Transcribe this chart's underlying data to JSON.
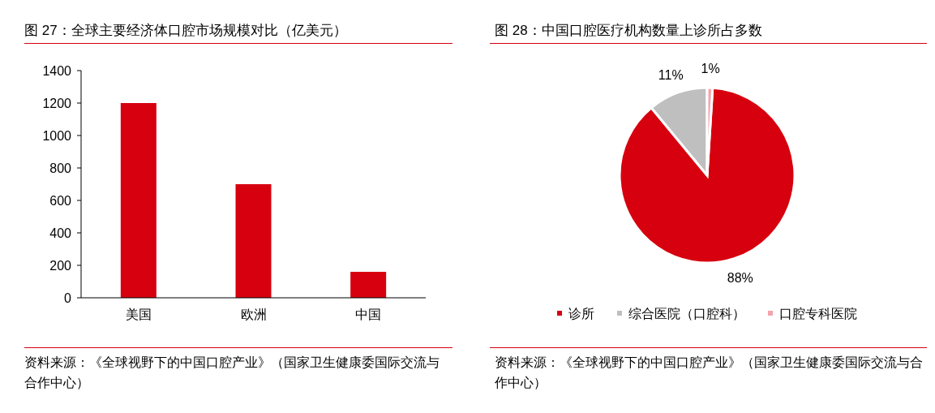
{
  "chart_data": [
    {
      "type": "bar",
      "title": "图 27：全球主要经济体口腔市场规模对比（亿美元）",
      "categories": [
        "美国",
        "欧洲",
        "中国"
      ],
      "values": [
        1200,
        700,
        160
      ],
      "color": "#d7000f",
      "ylim": [
        0,
        1400
      ],
      "yticks": [
        0,
        200,
        400,
        600,
        800,
        1000,
        1200,
        1400
      ],
      "grid": false,
      "annotations": [
        "资料来源：《全球视野下的中国口腔产业》（国家卫生健康委国际交流与合作中心）"
      ]
    },
    {
      "type": "pie",
      "title": "图 28：中国口腔医疗机构数量上诊所占多数",
      "categories": [
        "诊所",
        "综合医院（口腔科）",
        "口腔专科医院"
      ],
      "values": [
        88,
        11,
        1
      ],
      "colors": [
        "#d7000f",
        "#bfbfbf",
        "#f4a3ad"
      ],
      "value_labels": [
        "88%",
        "11%",
        "1%"
      ],
      "legend": "bottom",
      "annotations": [
        "资料来源：《全球视野下的中国口腔产业》（国家卫生健康委国际交流与合作中心）"
      ]
    }
  ]
}
